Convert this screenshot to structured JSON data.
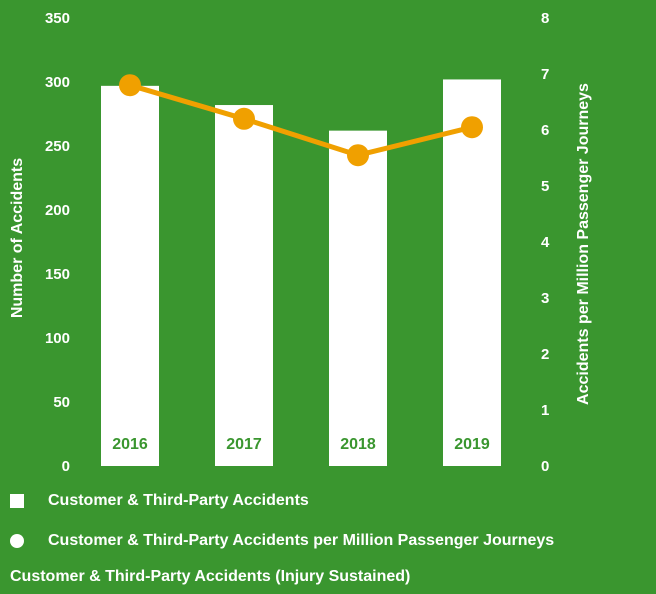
{
  "chart_data": {
    "type": "bar",
    "categories": [
      "2016",
      "2017",
      "2018",
      "2019"
    ],
    "series": [
      {
        "name": "Customer & Third-Party Accidents",
        "type": "bar",
        "axis": "left",
        "values": [
          297,
          282,
          262,
          302
        ]
      },
      {
        "name": "Customer & Third-Party Accidents per Million Passenger Journeys",
        "type": "line",
        "axis": "right",
        "values": [
          6.8,
          6.2,
          5.55,
          6.05
        ]
      }
    ],
    "ylabel": "Number of Accidents",
    "ylabel_right": "Accidents per Million Passenger Journeys",
    "ylim": [
      0,
      350
    ],
    "ylim_right": [
      0,
      8
    ],
    "yticks": [
      0,
      50,
      100,
      150,
      200,
      250,
      300,
      350
    ],
    "yticks_right": [
      0,
      1,
      2,
      3,
      4,
      5,
      6,
      7,
      8
    ],
    "grid": false,
    "legend_position": "bottom"
  },
  "footer_title": "Customer & Third-Party Accidents (Injury Sustained)",
  "colors": {
    "background": "#3a962f",
    "bar": "#ffffff",
    "line": "#f0a000",
    "category_label": "#3a962f"
  }
}
